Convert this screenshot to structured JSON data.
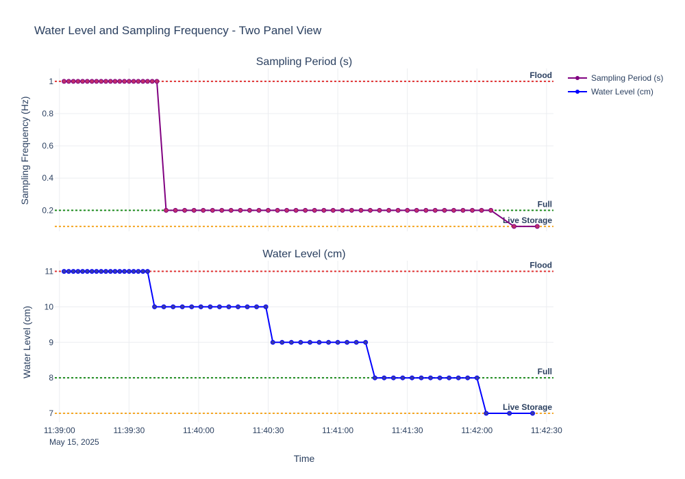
{
  "title": "Water Level and Sampling Frequency - Two Panel View",
  "colors": {
    "sampling": "#800080",
    "sampling_marker": "#c0306a",
    "water": "#0000ff",
    "water_marker": "#3a3aaa",
    "flood": "#e03030",
    "full": "#1a8a1a",
    "live_storage": "#f5a623",
    "text": "#2a3f5f",
    "grid": "#ebedf0"
  },
  "legend": {
    "placement": "top-right",
    "entries": [
      {
        "label": "Sampling Period (s)",
        "color_key": "sampling"
      },
      {
        "label": "Water Level (cm)",
        "color_key": "water"
      }
    ]
  },
  "x_axis": {
    "title": "Time",
    "date_label": "May 15, 2025",
    "range": [
      "11:38:58",
      "11:42:33"
    ],
    "ticks": [
      "11:39:00",
      "11:39:30",
      "11:40:00",
      "11:40:30",
      "11:41:00",
      "11:41:30",
      "11:42:00",
      "11:42:30"
    ]
  },
  "chart_data": [
    {
      "type": "line",
      "title": "Sampling Period (s)",
      "ylabel": "Sampling Frequency (Hz)",
      "ylim": [
        0.07,
        1.08
      ],
      "y_ticks": [
        "1",
        "0.8",
        "0.6",
        "0.4",
        "0.2"
      ],
      "grid": true,
      "reference_lines": [
        {
          "label": "Flood",
          "value": 1.0,
          "color_key": "flood"
        },
        {
          "label": "Full",
          "value": 0.2,
          "color_key": "full"
        },
        {
          "label": "Live Storage",
          "value": 0.1,
          "color_key": "live_storage"
        }
      ],
      "series": [
        {
          "name": "Sampling Period (s)",
          "color_key": "sampling",
          "marker_key": "sampling_marker",
          "points": [
            [
              "11:39:02",
              1
            ],
            [
              "11:39:04",
              1
            ],
            [
              "11:39:06",
              1
            ],
            [
              "11:39:08",
              1
            ],
            [
              "11:39:10",
              1
            ],
            [
              "11:39:12",
              1
            ],
            [
              "11:39:14",
              1
            ],
            [
              "11:39:16",
              1
            ],
            [
              "11:39:18",
              1
            ],
            [
              "11:39:20",
              1
            ],
            [
              "11:39:22",
              1
            ],
            [
              "11:39:24",
              1
            ],
            [
              "11:39:26",
              1
            ],
            [
              "11:39:28",
              1
            ],
            [
              "11:39:30",
              1
            ],
            [
              "11:39:32",
              1
            ],
            [
              "11:39:34",
              1
            ],
            [
              "11:39:36",
              1
            ],
            [
              "11:39:38",
              1
            ],
            [
              "11:39:40",
              1
            ],
            [
              "11:39:42",
              1
            ],
            [
              "11:39:46",
              0.2
            ],
            [
              "11:39:50",
              0.2
            ],
            [
              "11:39:54",
              0.2
            ],
            [
              "11:39:58",
              0.2
            ],
            [
              "11:40:02",
              0.2
            ],
            [
              "11:40:06",
              0.2
            ],
            [
              "11:40:10",
              0.2
            ],
            [
              "11:40:14",
              0.2
            ],
            [
              "11:40:18",
              0.2
            ],
            [
              "11:40:22",
              0.2
            ],
            [
              "11:40:26",
              0.2
            ],
            [
              "11:40:30",
              0.2
            ],
            [
              "11:40:34",
              0.2
            ],
            [
              "11:40:38",
              0.2
            ],
            [
              "11:40:42",
              0.2
            ],
            [
              "11:40:46",
              0.2
            ],
            [
              "11:40:50",
              0.2
            ],
            [
              "11:40:54",
              0.2
            ],
            [
              "11:40:58",
              0.2
            ],
            [
              "11:41:02",
              0.2
            ],
            [
              "11:41:06",
              0.2
            ],
            [
              "11:41:10",
              0.2
            ],
            [
              "11:41:14",
              0.2
            ],
            [
              "11:41:18",
              0.2
            ],
            [
              "11:41:22",
              0.2
            ],
            [
              "11:41:26",
              0.2
            ],
            [
              "11:41:30",
              0.2
            ],
            [
              "11:41:34",
              0.2
            ],
            [
              "11:41:38",
              0.2
            ],
            [
              "11:41:42",
              0.2
            ],
            [
              "11:41:46",
              0.2
            ],
            [
              "11:41:50",
              0.2
            ],
            [
              "11:41:54",
              0.2
            ],
            [
              "11:41:58",
              0.2
            ],
            [
              "11:42:02",
              0.2
            ],
            [
              "11:42:06",
              0.2
            ],
            [
              "11:42:16",
              0.1
            ],
            [
              "11:42:26",
              0.1
            ]
          ]
        }
      ]
    },
    {
      "type": "line",
      "title": "Water Level (cm)",
      "ylabel": "Water Level (cm)",
      "ylim": [
        6.75,
        11.3
      ],
      "y_ticks": [
        "11",
        "10",
        "9",
        "8",
        "7"
      ],
      "grid": true,
      "reference_lines": [
        {
          "label": "Flood",
          "value": 11,
          "color_key": "flood"
        },
        {
          "label": "Full",
          "value": 8,
          "color_key": "full"
        },
        {
          "label": "Live Storage",
          "value": 7,
          "color_key": "live_storage"
        }
      ],
      "series": [
        {
          "name": "Water Level (cm)",
          "color_key": "water",
          "marker_key": "water_marker",
          "points": [
            [
              "11:39:02",
              11
            ],
            [
              "11:39:04",
              11
            ],
            [
              "11:39:06",
              11
            ],
            [
              "11:39:08",
              11
            ],
            [
              "11:39:10",
              11
            ],
            [
              "11:39:12",
              11
            ],
            [
              "11:39:14",
              11
            ],
            [
              "11:39:16",
              11
            ],
            [
              "11:39:18",
              11
            ],
            [
              "11:39:20",
              11
            ],
            [
              "11:39:22",
              11
            ],
            [
              "11:39:24",
              11
            ],
            [
              "11:39:26",
              11
            ],
            [
              "11:39:28",
              11
            ],
            [
              "11:39:30",
              11
            ],
            [
              "11:39:32",
              11
            ],
            [
              "11:39:34",
              11
            ],
            [
              "11:39:36",
              11
            ],
            [
              "11:39:38",
              11
            ],
            [
              "11:39:41",
              10
            ],
            [
              "11:39:45",
              10
            ],
            [
              "11:39:49",
              10
            ],
            [
              "11:39:53",
              10
            ],
            [
              "11:39:57",
              10
            ],
            [
              "11:40:01",
              10
            ],
            [
              "11:40:05",
              10
            ],
            [
              "11:40:09",
              10
            ],
            [
              "11:40:13",
              10
            ],
            [
              "11:40:17",
              10
            ],
            [
              "11:40:21",
              10
            ],
            [
              "11:40:25",
              10
            ],
            [
              "11:40:29",
              10
            ],
            [
              "11:40:32",
              9
            ],
            [
              "11:40:36",
              9
            ],
            [
              "11:40:40",
              9
            ],
            [
              "11:40:44",
              9
            ],
            [
              "11:40:48",
              9
            ],
            [
              "11:40:52",
              9
            ],
            [
              "11:40:56",
              9
            ],
            [
              "11:41:00",
              9
            ],
            [
              "11:41:04",
              9
            ],
            [
              "11:41:08",
              9
            ],
            [
              "11:41:12",
              9
            ],
            [
              "11:41:16",
              8
            ],
            [
              "11:41:20",
              8
            ],
            [
              "11:41:24",
              8
            ],
            [
              "11:41:28",
              8
            ],
            [
              "11:41:32",
              8
            ],
            [
              "11:41:36",
              8
            ],
            [
              "11:41:40",
              8
            ],
            [
              "11:41:44",
              8
            ],
            [
              "11:41:48",
              8
            ],
            [
              "11:41:52",
              8
            ],
            [
              "11:41:56",
              8
            ],
            [
              "11:42:00",
              8
            ],
            [
              "11:42:04",
              7
            ],
            [
              "11:42:14",
              7
            ],
            [
              "11:42:24",
              7
            ]
          ]
        }
      ]
    }
  ]
}
